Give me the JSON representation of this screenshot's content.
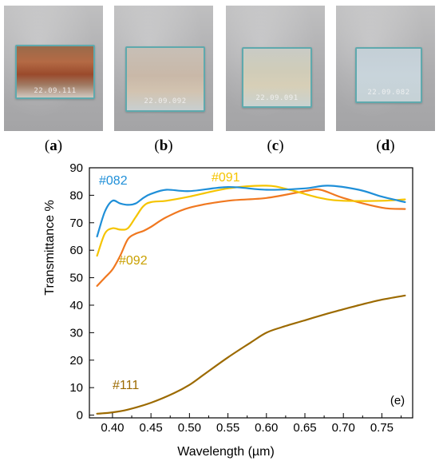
{
  "photos": [
    {
      "label": "(a)",
      "letter": "a",
      "engraving": "22.09.111"
    },
    {
      "label": "(b)",
      "letter": "b",
      "engraving": "22.09.092"
    },
    {
      "label": "(c)",
      "letter": "c",
      "engraving": "22.09.091"
    },
    {
      "label": "(d)",
      "letter": "d",
      "engraving": "22.09.082"
    }
  ],
  "chart_data": {
    "type": "line",
    "panel_label": "(e)",
    "xlabel": "Wavelength (µm)",
    "ylabel": "Transmittance %",
    "xlim": [
      0.37,
      0.79
    ],
    "ylim": [
      -1,
      90
    ],
    "x_ticks": [
      "0.40",
      "0.45",
      "0.50",
      "0.55",
      "0.60",
      "0.65",
      "0.70",
      "0.75"
    ],
    "y_ticks": [
      "0",
      "10",
      "20",
      "30",
      "40",
      "50",
      "60",
      "70",
      "80",
      "90"
    ],
    "grid": false,
    "series": [
      {
        "name": "#082",
        "color": "#1f8fd8",
        "x": [
          0.38,
          0.39,
          0.4,
          0.41,
          0.42,
          0.43,
          0.44,
          0.45,
          0.47,
          0.5,
          0.55,
          0.6,
          0.65,
          0.68,
          0.72,
          0.75,
          0.78
        ],
        "y": [
          65,
          74,
          78,
          77,
          76.5,
          77,
          79,
          80.5,
          82,
          81.5,
          83,
          82,
          82.5,
          83.5,
          82,
          79.5,
          77.5
        ]
      },
      {
        "name": "#091",
        "color": "#f5c400",
        "x": [
          0.38,
          0.39,
          0.4,
          0.41,
          0.42,
          0.43,
          0.44,
          0.45,
          0.47,
          0.5,
          0.55,
          0.6,
          0.63,
          0.67,
          0.7,
          0.75,
          0.78
        ],
        "y": [
          58,
          66,
          68,
          67.5,
          68,
          72,
          76,
          77.5,
          78,
          79.5,
          82.5,
          83.5,
          82,
          79,
          78,
          78,
          78.5
        ]
      },
      {
        "name": "#092",
        "color": "#f07820",
        "x": [
          0.38,
          0.39,
          0.4,
          0.41,
          0.42,
          0.43,
          0.44,
          0.45,
          0.47,
          0.5,
          0.55,
          0.6,
          0.65,
          0.67,
          0.7,
          0.75,
          0.78
        ],
        "y": [
          47,
          50,
          53,
          58,
          64,
          66,
          67,
          68.5,
          72,
          75.5,
          78,
          79,
          81.5,
          82,
          79,
          75.5,
          75
        ]
      },
      {
        "name": "#111",
        "color": "#9c6a00",
        "x": [
          0.38,
          0.4,
          0.42,
          0.45,
          0.48,
          0.5,
          0.52,
          0.55,
          0.58,
          0.6,
          0.62,
          0.65,
          0.68,
          0.7,
          0.72,
          0.75,
          0.78
        ],
        "y": [
          0.5,
          1,
          2,
          4.5,
          8,
          11,
          15,
          21,
          26.5,
          30,
          32,
          34.5,
          37,
          38.5,
          40,
          42,
          43.5
        ]
      }
    ],
    "label_colors": {
      "#082": "#1f8fd8",
      "#091": "#f5c400",
      "#092": "#c9a000",
      "#111": "#9c6a00"
    }
  }
}
